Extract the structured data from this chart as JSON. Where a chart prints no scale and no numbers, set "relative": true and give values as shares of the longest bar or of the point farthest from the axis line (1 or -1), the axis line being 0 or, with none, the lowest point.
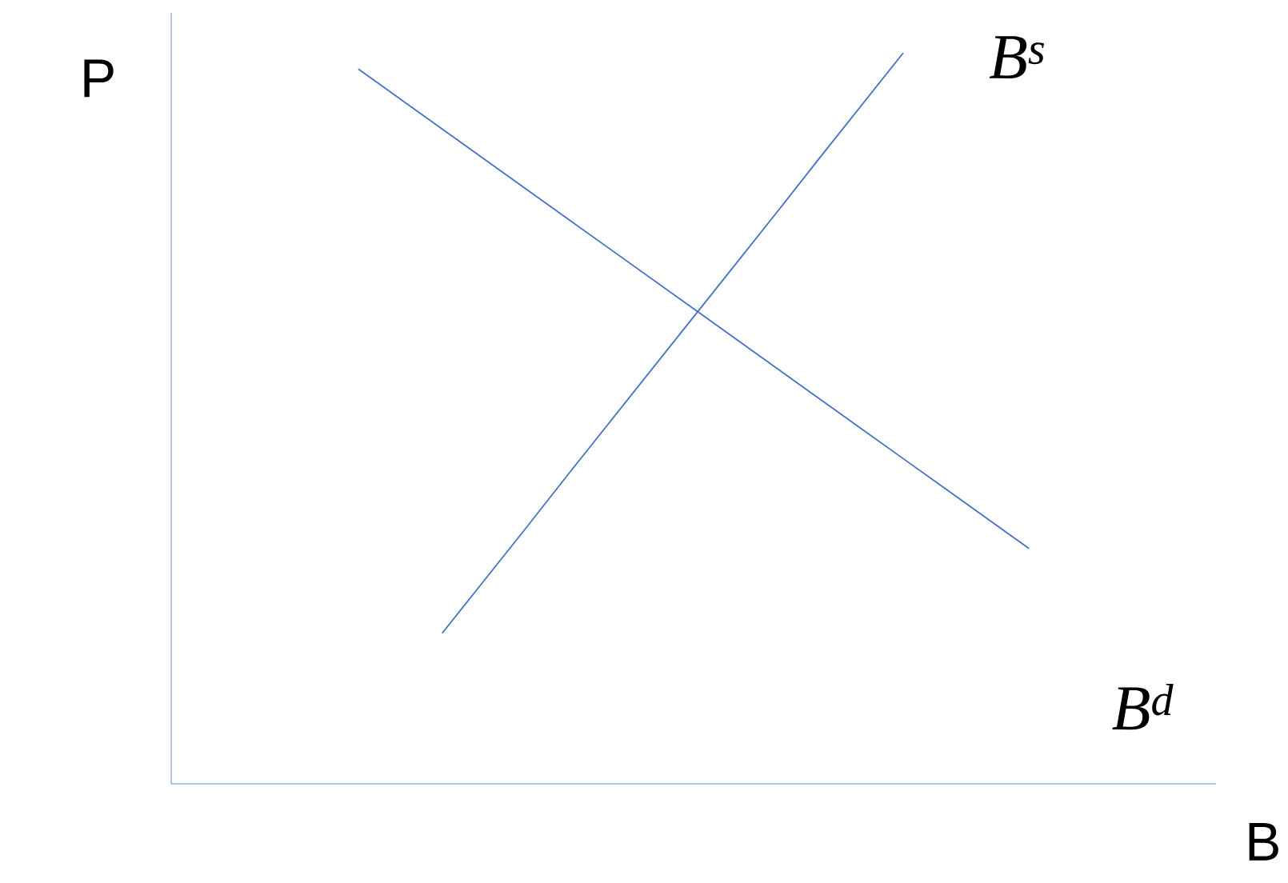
{
  "chart_data": {
    "type": "line",
    "relative": true,
    "xlabel": "B",
    "ylabel": "P",
    "categories": [
      null,
      null,
      null,
      null,
      null,
      null,
      null,
      null,
      null,
      null,
      null,
      null,
      null,
      null,
      null,
      null,
      null
    ],
    "series": [
      {
        "name": "B$^{s}$",
        "color": "#4472c4",
        "values": [
          null,
          null,
          0.206,
          0.278,
          0.35,
          0.423,
          0.495,
          0.567,
          0.639,
          0.711,
          0.783,
          0.856,
          0.928,
          1.0,
          null,
          null,
          null
        ]
      },
      {
        "name": "B$^{d}$",
        "color": "#4472c4",
        "values": [
          0.978,
          0.937,
          0.896,
          0.855,
          0.814,
          0.773,
          0.732,
          0.691,
          0.65,
          0.609,
          0.568,
          0.527,
          0.486,
          0.445,
          0.404,
          0.363,
          0.322
        ]
      }
    ]
  }
}
